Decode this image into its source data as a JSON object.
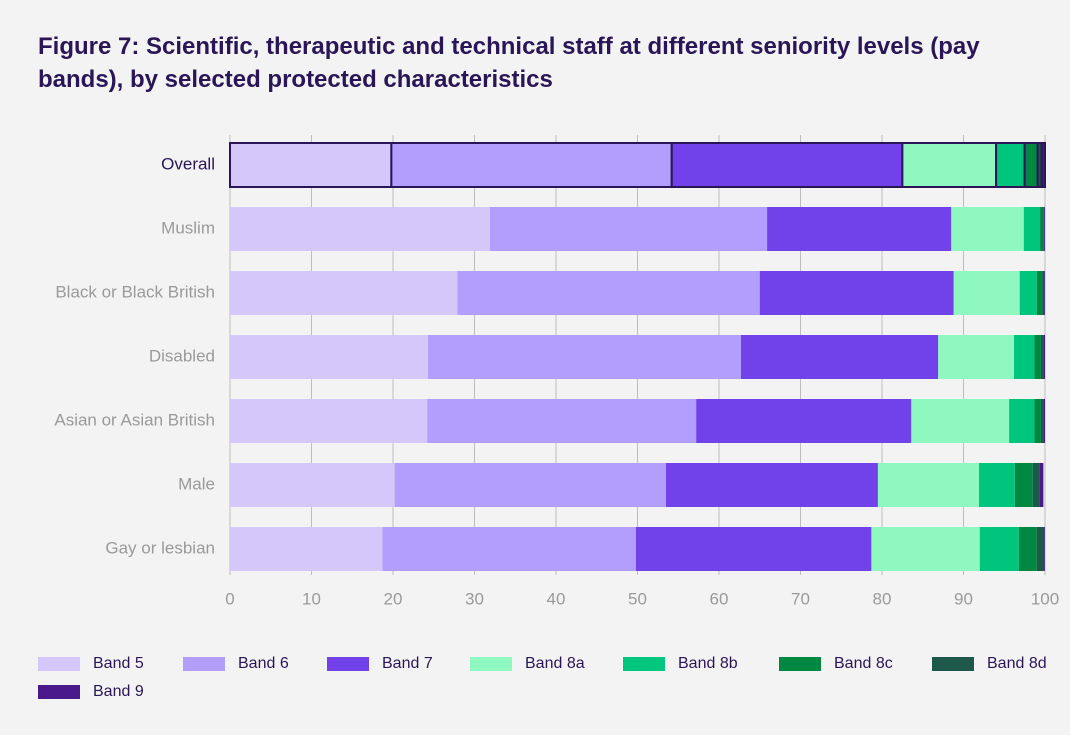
{
  "chart_data": {
    "type": "stacked-bar-horizontal",
    "title": "Figure 7: Scientific, therapeutic and technical staff at different seniority levels (pay bands), by selected protected characteristics",
    "categories": [
      "Overall",
      "Muslim",
      "Black or Black British",
      "Disabled",
      "Asian or Asian British",
      "Male",
      "Gay or lesbian"
    ],
    "series": [
      {
        "name": "Band 5",
        "color": "#d4c8fb",
        "values": [
          19.8,
          31.9,
          27.9,
          24.3,
          24.2,
          20.2,
          18.7
        ]
      },
      {
        "name": "Band 6",
        "color": "#b19efd",
        "values": [
          34.4,
          34.0,
          37.1,
          38.4,
          33.0,
          33.3,
          31.1
        ]
      },
      {
        "name": "Band 7",
        "color": "#7142ea",
        "values": [
          28.3,
          22.6,
          23.8,
          24.2,
          26.4,
          26.0,
          28.9
        ]
      },
      {
        "name": "Band 8a",
        "color": "#8ef8c0",
        "values": [
          11.5,
          8.9,
          8.1,
          9.3,
          12.0,
          12.4,
          13.3
        ]
      },
      {
        "name": "Band 8b",
        "color": "#00c57c",
        "values": [
          3.5,
          2.0,
          2.1,
          2.5,
          3.1,
          4.4,
          4.8
        ]
      },
      {
        "name": "Band 8c",
        "color": "#008741",
        "values": [
          1.6,
          0.4,
          0.7,
          0.8,
          0.8,
          2.2,
          2.2
        ]
      },
      {
        "name": "Band 8d",
        "color": "#1c5948",
        "values": [
          0.5,
          0.1,
          0.2,
          0.3,
          0.3,
          0.8,
          0.9
        ]
      },
      {
        "name": "Band 9",
        "color": "#4a1a8c",
        "values": [
          0.4,
          0.1,
          0.1,
          0.2,
          0.2,
          0.5,
          0.1
        ]
      }
    ],
    "xlim": [
      0,
      100
    ],
    "xticks": [
      0,
      10,
      20,
      30,
      40,
      50,
      60,
      70,
      80,
      90,
      100
    ],
    "grid": true,
    "legend": "bottom"
  }
}
